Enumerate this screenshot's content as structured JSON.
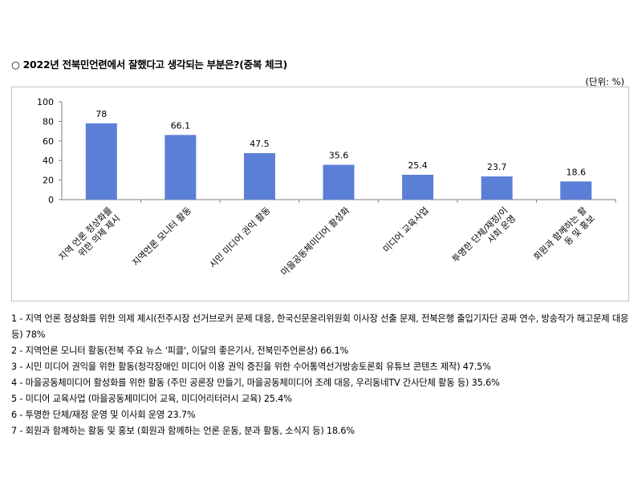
{
  "header": {
    "title": "○ 2022년 전북민언련에서 잘했다고 생각되는 부분은?(중복 체크)",
    "unit": "(단위: %)"
  },
  "chart_data": {
    "type": "bar",
    "categories": [
      "지역 언론 정상화를 위한 의제 제시",
      "지역언론 모니터 활동",
      "시민 미디어 권익 활동",
      "마을공동체미디어 활성화",
      "미디어 교육사업",
      "투명한 단체/재정/이사회 운영",
      "회원과 함께하는 활동 및 홍보"
    ],
    "category_lines": [
      [
        "지역 언론 정상화를",
        "위한 의제 제시"
      ],
      [
        "지역언론 모니터 활동"
      ],
      [
        "시민 미디어 권익 활동"
      ],
      [
        "마을공동체미디어 활성화"
      ],
      [
        "미디어 교육사업"
      ],
      [
        "투명한 단체/재정/이",
        "사회 운영"
      ],
      [
        "회원과 함께하는 활",
        "동 및 홍보"
      ]
    ],
    "values": [
      78,
      66.1,
      47.5,
      35.6,
      25.4,
      23.7,
      18.6
    ],
    "value_labels": [
      "78",
      "66.1",
      "47.5",
      "35.6",
      "25.4",
      "23.7",
      "18.6"
    ],
    "ylim": [
      0,
      100
    ],
    "yticks": [
      "0",
      "20",
      "40",
      "60",
      "80",
      "100"
    ],
    "grid": false,
    "bar_color": "#5b7fd6"
  },
  "notes": [
    "1 - 지역 언론 정상화를 위한 의제 제시(전주시장 선거브로커 문제 대응, 한국신문윤리위원회 이사장 선출 문제, 전북은행 출입기자단 공짜 연수, 방송작가 해고문제 대응 등) 78%",
    "2 - 지역언론 모니터 활동(전북 주요 뉴스 '피클', 이달의 좋은기사, 전북민주언론상) 66.1%",
    "3 - 시민 미디어 권익을 위한 활동(청각장애인 미디어 이용 권익 증진을 위한 수어통역선거방송토론회 유튜브 콘텐츠 제작) 47.5%",
    "4 - 마을공동체미디어 활성화를 위한 활동 (주민 공론장 만들기, 마을공동체미디어 조례 대응, 우리동네TV 간사단체 활동 등) 35.6%",
    "5 - 미디어 교육사업 (마을공동체미디어 교육, 미디어리터러시 교육) 25.4%",
    "6 - 투명한 단체/재정 운영 및 이사회 운영 23.7%",
    "7 - 회원과 함께하는 활동 및 홍보 (회원과 함께하는 언론 운동, 분과 활동, 소식지 등) 18.6%"
  ]
}
